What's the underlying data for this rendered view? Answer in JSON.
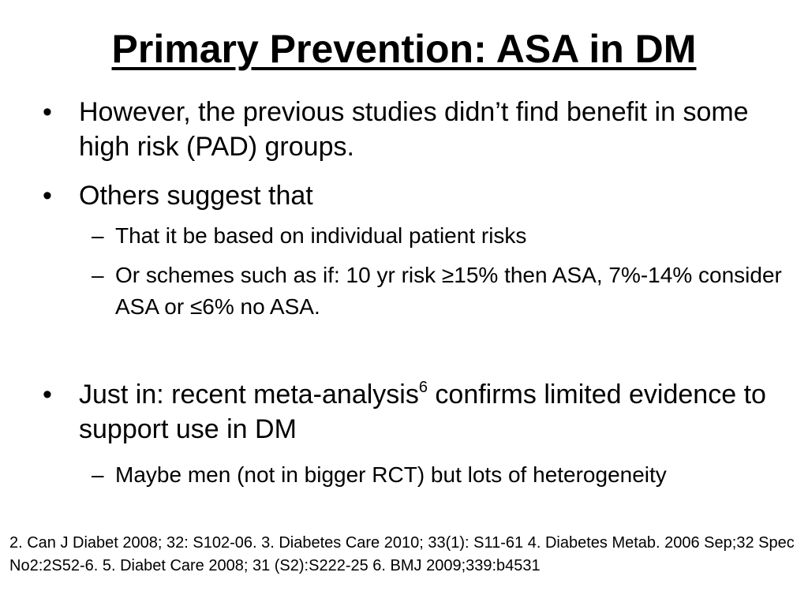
{
  "title": "Primary Prevention: ASA in DM",
  "bullets": [
    {
      "marker": "•",
      "text": "However, the previous studies didn’t find benefit in some high risk (PAD) groups."
    },
    {
      "marker": "•",
      "text": "Others suggest that",
      "subs": [
        {
          "marker": "–",
          "text": "That it be based on individual patient risks"
        },
        {
          "marker": "–",
          "text": "Or schemes such as if: 10 yr risk ≥15% then ASA,  7%-14% consider ASA or ≤6% no ASA."
        }
      ]
    },
    {
      "marker": "•",
      "text_before": "Just in: recent meta-analysis",
      "superscript": "6",
      "text_after": " confirms limited evidence to support use in DM",
      "subs": [
        {
          "marker": "–",
          "text": "Maybe men (not in bigger RCT) but lots of heterogeneity"
        }
      ]
    }
  ],
  "references": "2. Can J Diabet 2008; 32: S102-06. 3. Diabetes Care 2010; 33(1): S11-61  4.  Diabetes Metab. 2006 Sep;32 Spec No2:2S52-6.  5. Diabet Care 2008; 31 (S2):S222-25   6. BMJ 2009;339:b4531"
}
